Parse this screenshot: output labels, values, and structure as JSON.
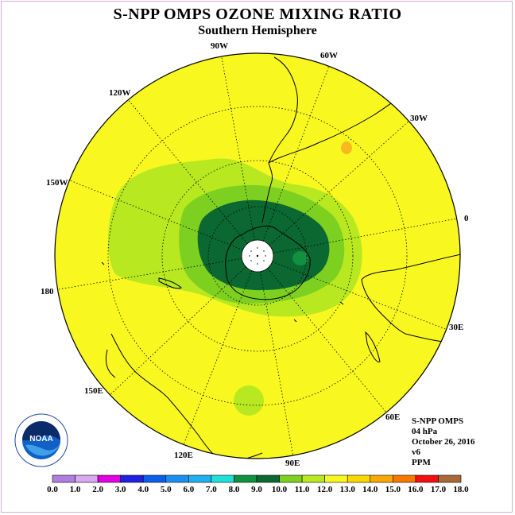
{
  "title": "S-NPP OMPS OZONE MIXING RATIO",
  "subtitle": "Southern Hemisphere",
  "longitude_labels": [
    "0",
    "30E",
    "60E",
    "90E",
    "120E",
    "150E",
    "180",
    "150W",
    "120W",
    "90W",
    "60W",
    "30W"
  ],
  "info": {
    "instrument": "S-NPP OMPS",
    "level": "04 hPa",
    "date": "October 26, 2016",
    "version": "v6",
    "units": "PPM"
  },
  "colorbar": {
    "ticks": [
      "0.0",
      "1.0",
      "2.0",
      "3.0",
      "4.0",
      "5.0",
      "6.0",
      "7.0",
      "8.0",
      "9.0",
      "10.0",
      "11.0",
      "12.0",
      "13.0",
      "14.0",
      "15.0",
      "16.0",
      "17.0",
      "18.0"
    ],
    "colors": [
      "#b07ee0",
      "#d9a8f0",
      "#e000e0",
      "#2020e0",
      "#0a5fe8",
      "#1a8ff0",
      "#20b0f0",
      "#20e0d8",
      "#109040",
      "#0a6830",
      "#7ed020",
      "#b8e820",
      "#f8f820",
      "#f8d800",
      "#f8a800",
      "#f87800",
      "#f01010",
      "#a86838"
    ]
  },
  "legend_logo_text": "NOAA",
  "colors": {
    "background_field": "#f8f820",
    "green_light": "#b8e820",
    "green_mid": "#7ed020",
    "green_dark": "#0a6830",
    "green_med_dark": "#109040",
    "orange_spot": "#f8b820"
  }
}
